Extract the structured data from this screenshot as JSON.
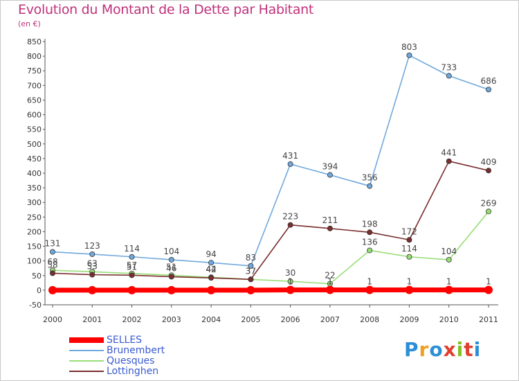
{
  "header": {
    "title": "Evolution du Montant de la Dette par Habitant",
    "subtitle": "(en €)"
  },
  "logo": {
    "text": "Proxiti",
    "colors": [
      "#2c8fd6",
      "#f0a020",
      "#2c8fd6",
      "#e04030",
      "#80c020",
      "#e04030",
      "#2c8fd6"
    ]
  },
  "chart_data": {
    "type": "line",
    "title": "Evolution du Montant de la Dette par Habitant",
    "subtitle": "(en €)",
    "xlabel": "",
    "ylabel": "",
    "x": [
      "2000",
      "2001",
      "2002",
      "2003",
      "2004",
      "2005",
      "2006",
      "2007",
      "2008",
      "2009",
      "2010",
      "2011"
    ],
    "ylim": [
      -50,
      850
    ],
    "yticks": [
      -50,
      0,
      50,
      100,
      150,
      200,
      250,
      300,
      350,
      400,
      450,
      500,
      550,
      600,
      650,
      700,
      750,
      800,
      850
    ],
    "grid": false,
    "legend": "bottom-left",
    "series": [
      {
        "name": "SELLES",
        "color": "#ff0000",
        "values": [
          0,
          0,
          0,
          0,
          0,
          0,
          1,
          1,
          1,
          1,
          1,
          1
        ],
        "labels": [
          "",
          "",
          "",
          "",
          "",
          "",
          "1",
          "1",
          "1",
          "1",
          "1",
          "1"
        ]
      },
      {
        "name": "Brunembert",
        "color": "#6fa8dc",
        "values": [
          131,
          123,
          114,
          104,
          94,
          83,
          431,
          394,
          356,
          803,
          733,
          686
        ],
        "labels": [
          "131",
          "123",
          "114",
          "104",
          "94",
          "83",
          "431",
          "394",
          "356",
          "803",
          "733",
          "686"
        ]
      },
      {
        "name": "Quesques",
        "color": "#99dd77",
        "values": [
          68,
          63,
          57,
          51,
          44,
          37,
          30,
          22,
          136,
          114,
          104,
          269
        ],
        "labels": [
          "68",
          "63",
          "57",
          "51",
          "44",
          "37",
          "30",
          "22",
          "136",
          "114",
          "104",
          "269"
        ]
      },
      {
        "name": "Lottinghen",
        "color": "#7a2e2e",
        "values": [
          58,
          53,
          51,
          46,
          42,
          37,
          223,
          211,
          198,
          172,
          441,
          409
        ],
        "labels": [
          "58",
          "53",
          "51",
          "46",
          "42",
          "37",
          "223",
          "211",
          "198",
          "172",
          "441",
          "409"
        ]
      }
    ]
  }
}
